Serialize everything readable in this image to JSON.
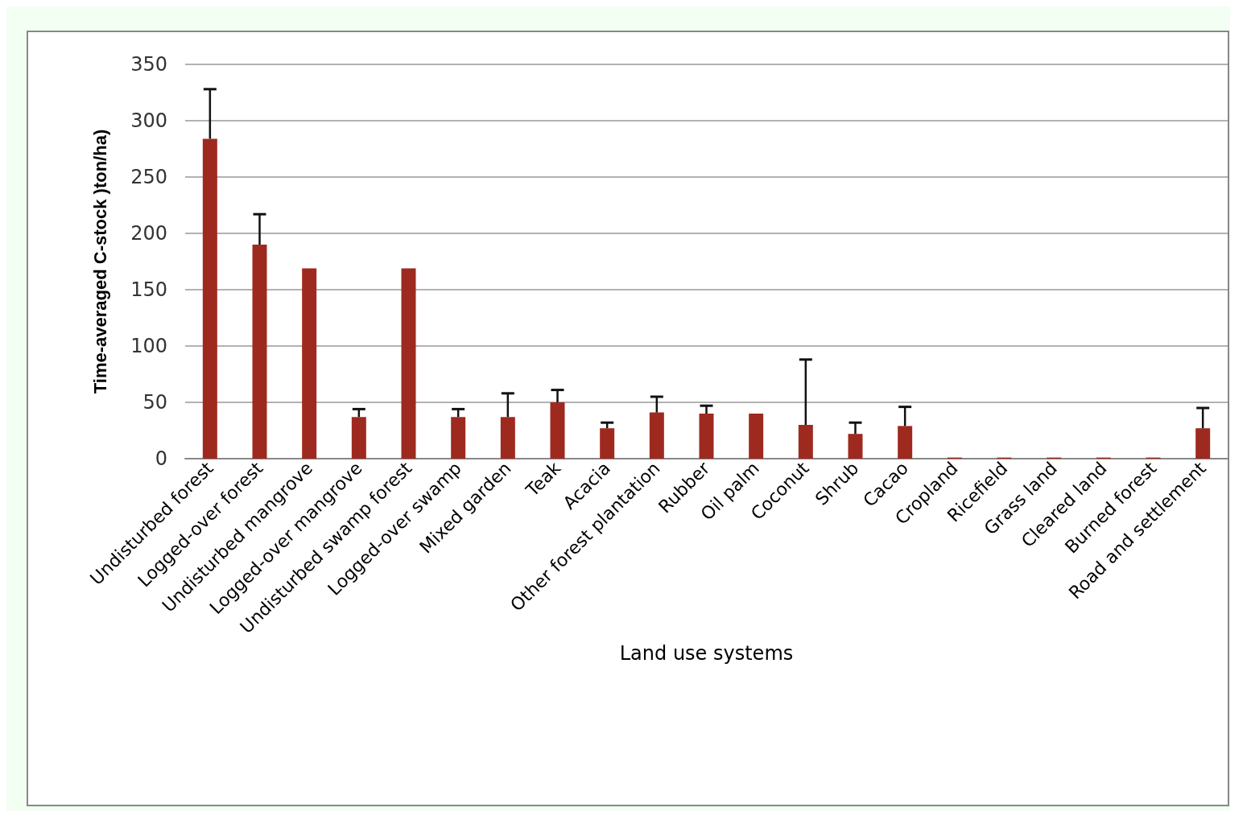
{
  "chart_data": {
    "type": "bar",
    "xlabel": "Land use systems",
    "ylabel": "Time-averaged C-stock )ton/ha)",
    "categories": [
      "Undisturbed forest",
      "Logged-over forest",
      "Undisturbed mangrove",
      "Logged-over mangrove",
      "Undisturbed swamp forest",
      "Logged-over swamp",
      "Mixed garden",
      "Teak",
      "Acacia",
      "Other forest plantation",
      "Rubber",
      "Oil palm",
      "Coconut",
      "Shrub",
      "Cacao",
      "Cropland",
      "Ricefield",
      "Grass land",
      "Cleared land",
      "Burned forest",
      "Road and settlement"
    ],
    "values": [
      284,
      190,
      169,
      37,
      169,
      37,
      37,
      50,
      27,
      41,
      40,
      40,
      30,
      22,
      29,
      1,
      1,
      1,
      1,
      1,
      27
    ],
    "errors": [
      [
        284,
        328
      ],
      [
        190,
        217
      ],
      null,
      [
        37,
        44
      ],
      null,
      [
        37,
        44
      ],
      [
        37,
        58
      ],
      [
        50,
        61
      ],
      [
        27,
        32
      ],
      [
        41,
        55
      ],
      [
        40,
        47
      ],
      null,
      [
        30,
        88
      ],
      [
        22,
        32
      ],
      [
        29,
        46
      ],
      null,
      null,
      null,
      null,
      null,
      [
        27,
        45
      ]
    ],
    "color": "#9e2a1f",
    "ylim": [
      0,
      350
    ],
    "yticks": [
      0,
      50,
      100,
      150,
      200,
      250,
      300,
      350
    ],
    "grid": "y"
  }
}
